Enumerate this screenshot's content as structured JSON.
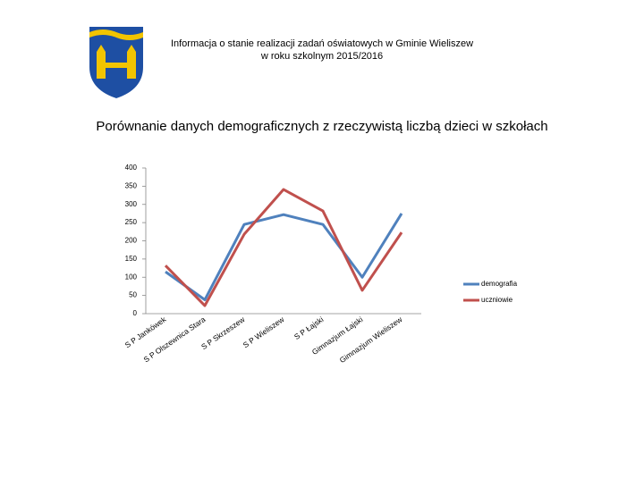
{
  "header": {
    "title_line1": "Informacja o stanie realizacji zadań oświatowych w Gminie Wieliszew",
    "title_line2": "w roku szkolnym 2015/2016"
  },
  "chart_data": {
    "type": "line",
    "title": "Porównanie danych demograficznych z rzeczywistą liczbą dzieci w szkołach",
    "categories": [
      "S P Jankówek",
      "S P Olszewnica Stara",
      "S P Skrzeszew",
      "S P Wieliszew",
      "S P Łajski",
      "Gimnazjum Łajski",
      "Gimnazjum Wieliszew"
    ],
    "series": [
      {
        "name": "demografia",
        "color": "#4f81bd",
        "values": [
          115,
          38,
          245,
          272,
          245,
          100,
          275
        ]
      },
      {
        "name": "uczniowie",
        "color": "#c0504d",
        "values": [
          132,
          22,
          218,
          341,
          282,
          64,
          223
        ]
      }
    ],
    "ylim": [
      0,
      400
    ],
    "yticks": [
      0,
      50,
      100,
      150,
      200,
      250,
      300,
      350,
      400
    ],
    "legend": "right"
  }
}
